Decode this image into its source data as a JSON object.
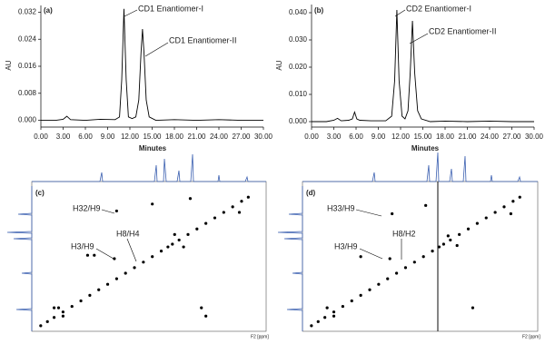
{
  "chart_data": [
    {
      "type": "line",
      "panel_label": "(a)",
      "x_label": "Minutes",
      "y_label": "AU",
      "color": "#000000",
      "x": [
        0,
        2,
        3,
        3.5,
        4,
        6,
        8,
        10,
        10.6,
        10.9,
        11.2,
        11.5,
        11.8,
        12.3,
        12.8,
        13.2,
        13.5,
        13.7,
        13.9,
        14.2,
        14.6,
        15.5,
        18,
        21,
        24,
        27,
        30
      ],
      "values": [
        0,
        0,
        0.0003,
        0.0012,
        0.0002,
        0,
        0.0003,
        0.0002,
        0.001,
        0.012,
        0.033,
        0.012,
        0.001,
        0.0005,
        0.001,
        0.006,
        0.02,
        0.027,
        0.02,
        0.006,
        0.001,
        0,
        0.0002,
        0,
        0.0002,
        0,
        0
      ],
      "xlim": [
        0,
        30
      ],
      "xticks": [
        {
          "value": 0,
          "label": "0.00"
        },
        {
          "value": 3,
          "label": "3.00"
        },
        {
          "value": 6,
          "label": "6.00"
        },
        {
          "value": 9,
          "label": "9.00"
        },
        {
          "value": 12,
          "label": "12.00"
        },
        {
          "value": 15,
          "label": "15.00"
        },
        {
          "value": 18,
          "label": "18.00"
        },
        {
          "value": 21,
          "label": "21.00"
        },
        {
          "value": 24,
          "label": "24.00"
        },
        {
          "value": 27,
          "label": "27.00"
        },
        {
          "value": 30,
          "label": "30.00"
        }
      ],
      "ylim": [
        -0.002,
        0.034
      ],
      "yticks": [
        {
          "value": 0,
          "label": "0.000"
        },
        {
          "value": 0.008,
          "label": "0.008"
        },
        {
          "value": 0.016,
          "label": "0.016"
        },
        {
          "value": 0.024,
          "label": "0.024"
        },
        {
          "value": 0.032,
          "label": "0.032"
        }
      ],
      "annotations": [
        "CD1 Enantiomer-I",
        "CD1 Enantiomer-II"
      ]
    },
    {
      "type": "line",
      "panel_label": "(b)",
      "x_label": "Minutes",
      "y_label": "AU",
      "color": "#000000",
      "x": [
        0,
        2,
        3,
        3.5,
        4,
        5,
        5.5,
        5.8,
        6.1,
        6.5,
        8,
        10,
        10.8,
        11.2,
        11.5,
        11.8,
        12.2,
        12.6,
        13,
        13.3,
        13.6,
        13.9,
        14.3,
        14.8,
        16,
        18,
        21,
        24,
        27,
        30
      ],
      "values": [
        0,
        0,
        0.0005,
        0.0012,
        0.0003,
        0.0005,
        0.001,
        0.0035,
        0.001,
        0.0005,
        0.0003,
        0.0003,
        0.002,
        0.015,
        0.041,
        0.015,
        0.002,
        0.001,
        0.004,
        0.018,
        0.037,
        0.018,
        0.004,
        0.001,
        0,
        0.0002,
        0,
        0.0002,
        0,
        0
      ],
      "xlim": [
        0,
        30
      ],
      "xticks": [
        {
          "value": 0,
          "label": "0.00"
        },
        {
          "value": 3,
          "label": "3.00"
        },
        {
          "value": 6,
          "label": "6.00"
        },
        {
          "value": 9,
          "label": "9.00"
        },
        {
          "value": 12,
          "label": "12.00"
        },
        {
          "value": 15,
          "label": "15.00"
        },
        {
          "value": 18,
          "label": "18.00"
        },
        {
          "value": 21,
          "label": "21.00"
        },
        {
          "value": 24,
          "label": "24.00"
        },
        {
          "value": 27,
          "label": "27.00"
        },
        {
          "value": 30,
          "label": "30.00"
        }
      ],
      "ylim": [
        -0.002,
        0.043
      ],
      "yticks": [
        {
          "value": 0,
          "label": "0.000"
        },
        {
          "value": 0.01,
          "label": "0.010"
        },
        {
          "value": 0.02,
          "label": "0.020"
        },
        {
          "value": 0.03,
          "label": "0.030"
        },
        {
          "value": 0.04,
          "label": "0.040"
        }
      ],
      "annotations": [
        "CD2 Enantiomer-I",
        "CD2 Enantiomer-II"
      ]
    },
    {
      "type": "scatter",
      "panel_label": "(c)",
      "x_label": "F2 [ppm]",
      "color": "#000000",
      "x": [
        9.6,
        9.3,
        9.0,
        8.6,
        8.2,
        7.8,
        7.4,
        7.0,
        6.6,
        6.2,
        5.8,
        5.4,
        5.0,
        4.6,
        4.2,
        3.9,
        3.7,
        3.4,
        3.0,
        2.6,
        2.2,
        1.8,
        1.4,
        1.0,
        0.6,
        0.3,
        6.2,
        6.3,
        7.5,
        7.2,
        8.8,
        9.0,
        8.6,
        2.4,
        2.2,
        3.6,
        3.2,
        0.7,
        2.9,
        4.6
      ],
      "values": [
        9.6,
        9.3,
        9.0,
        8.6,
        8.2,
        7.8,
        7.4,
        7.0,
        6.6,
        6.2,
        5.8,
        5.4,
        5.0,
        4.6,
        4.2,
        3.9,
        3.7,
        3.4,
        3.0,
        2.6,
        2.2,
        1.8,
        1.4,
        1.0,
        0.6,
        0.3,
        1.3,
        4.75,
        4.5,
        4.5,
        8.3,
        8.3,
        8.9,
        8.3,
        8.9,
        3.0,
        3.9,
        1.4,
        0.4,
        0.8
      ],
      "xlim": [
        10,
        -0.5
      ],
      "ylim": [
        10,
        -0.5
      ],
      "annotations": [
        "H32/H9",
        "H8/H4",
        "H3/H9"
      ]
    },
    {
      "type": "scatter",
      "panel_label": "(d)",
      "x_label": "F2 [ppm]",
      "color": "#000000",
      "x": [
        9.6,
        9.3,
        9.0,
        8.6,
        8.2,
        7.8,
        7.4,
        7.0,
        6.6,
        6.2,
        5.8,
        5.4,
        5.0,
        4.6,
        4.2,
        3.9,
        3.7,
        3.4,
        3.0,
        2.6,
        2.2,
        1.8,
        1.4,
        1.0,
        0.6,
        0.3,
        6.0,
        6.1,
        7.4,
        8.9,
        8.6,
        2.4,
        3.5,
        3.1,
        0.7,
        4.5
      ],
      "values": [
        9.6,
        9.3,
        9.0,
        8.6,
        8.2,
        7.8,
        7.4,
        7.0,
        6.6,
        6.2,
        5.8,
        5.4,
        5.0,
        4.6,
        4.2,
        3.9,
        3.7,
        3.4,
        3.0,
        2.6,
        2.2,
        1.8,
        1.4,
        1.0,
        0.6,
        0.3,
        1.5,
        4.75,
        4.6,
        8.3,
        8.9,
        8.3,
        3.1,
        3.8,
        1.5,
        0.9
      ],
      "xlim": [
        10,
        -0.5
      ],
      "ylim": [
        10,
        -0.5
      ],
      "annotations": [
        "H33/H9",
        "H8/H2",
        "H3/H9"
      ]
    }
  ]
}
